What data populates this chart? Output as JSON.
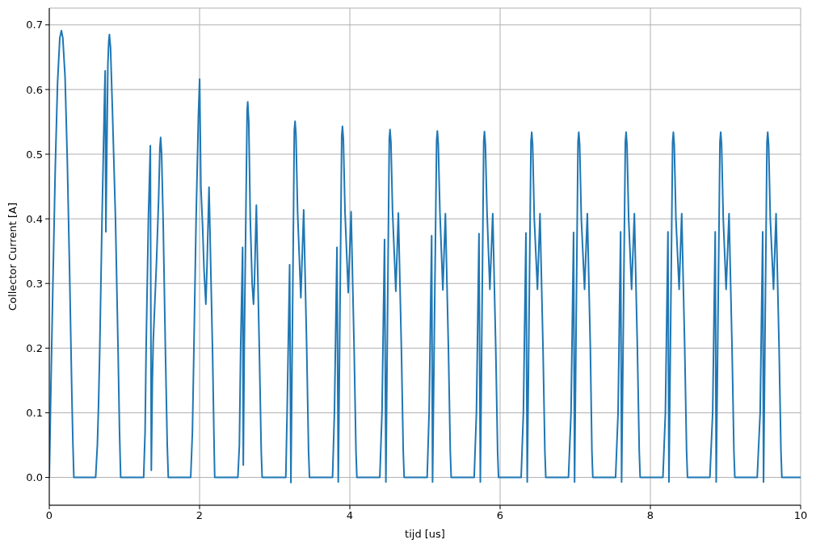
{
  "chart_data": {
    "type": "line",
    "xlabel": "tijd [us]",
    "ylabel": "Collector Current [A]",
    "color": "#1f77b4",
    "xlim": [
      0,
      10
    ],
    "ylim": [
      -0.043,
      0.726
    ],
    "xticks": [
      0,
      2,
      4,
      6,
      8,
      10
    ],
    "yticks": [
      {
        "value": 0,
        "label": "0.0"
      },
      0.1,
      0.2,
      0.3,
      0.4,
      0.5,
      0.6,
      0.7
    ],
    "grid": true,
    "x": [
      0,
      0.02,
      0.05,
      0.08,
      0.11,
      0.14,
      0.161,
      0.18,
      0.21,
      0.24,
      0.27,
      0.3,
      0.315,
      0.327,
      0.617,
      0.64,
      0.655,
      0.672,
      0.702,
      0.737,
      0.744,
      0.753,
      0.78,
      0.792,
      0.8,
      0.815,
      0.84,
      0.881,
      0.915,
      0.935,
      0.95,
      1.256,
      1.275,
      1.289,
      1.319,
      1.345,
      1.358,
      1.372,
      1.384,
      1.426,
      1.455,
      1.472,
      1.482,
      1.495,
      1.515,
      1.545,
      1.57,
      1.584,
      1.882,
      1.905,
      1.925,
      1.954,
      1.985,
      2.001,
      2.018,
      2.04,
      2.06,
      2.084,
      2.1,
      2.126,
      2.172,
      2.195,
      2.202,
      2.51,
      2.53,
      2.547,
      2.573,
      2.582,
      2.595,
      2.633,
      2.641,
      2.655,
      2.675,
      2.7,
      2.718,
      2.73,
      2.756,
      2.795,
      2.821,
      2.833,
      3.148,
      3.165,
      3.199,
      3.216,
      3.261,
      3.271,
      3.283,
      3.305,
      3.348,
      3.386,
      3.426,
      3.451,
      3.463,
      3.77,
      3.795,
      3.829,
      3.846,
      3.892,
      3.902,
      3.914,
      3.936,
      3.979,
      4.017,
      4.057,
      4.082,
      4.094,
      4.399,
      4.428,
      4.462,
      4.48,
      4.525,
      4.535,
      4.547,
      4.569,
      4.612,
      4.646,
      4.686,
      4.711,
      4.723,
      5.029,
      5.055,
      5.089,
      5.101,
      5.155,
      5.165,
      5.177,
      5.199,
      5.238,
      5.272,
      5.312,
      5.337,
      5.349,
      5.655,
      5.685,
      5.719,
      5.737,
      5.782,
      5.792,
      5.804,
      5.826,
      5.864,
      5.902,
      5.942,
      5.967,
      5.979,
      6.28,
      6.31,
      6.344,
      6.361,
      6.411,
      6.421,
      6.433,
      6.455,
      6.497,
      6.531,
      6.571,
      6.596,
      6.608,
      6.91,
      6.944,
      6.978,
      6.991,
      7.037,
      7.047,
      7.059,
      7.081,
      7.124,
      7.161,
      7.201,
      7.222,
      7.234,
      7.537,
      7.57,
      7.604,
      7.617,
      7.667,
      7.677,
      7.689,
      7.711,
      7.75,
      7.787,
      7.827,
      7.852,
      7.864,
      8.167,
      8.2,
      8.234,
      8.247,
      8.296,
      8.306,
      8.318,
      8.34,
      8.383,
      8.417,
      8.457,
      8.482,
      8.494,
      8.792,
      8.829,
      8.863,
      8.876,
      8.926,
      8.936,
      8.948,
      8.97,
      9.008,
      9.047,
      9.087,
      9.112,
      9.124,
      9.422,
      9.461,
      9.495,
      9.506,
      9.552,
      9.562,
      9.574,
      9.596,
      9.639,
      9.673,
      9.713,
      9.738,
      9.75,
      10
    ],
    "values": [
      0,
      0.13,
      0.31,
      0.48,
      0.61,
      0.68,
      0.691,
      0.68,
      0.62,
      0.49,
      0.32,
      0.13,
      0.05,
      0,
      0,
      0.05,
      0.11,
      0.2,
      0.4,
      0.6,
      0.629,
      0.38,
      0.64,
      0.675,
      0.685,
      0.665,
      0.57,
      0.4,
      0.2,
      0.07,
      0,
      0,
      0.07,
      0.2,
      0.4,
      0.513,
      0.011,
      0.15,
      0.212,
      0.33,
      0.43,
      0.51,
      0.526,
      0.5,
      0.4,
      0.2,
      0.05,
      0,
      0,
      0.07,
      0.2,
      0.4,
      0.56,
      0.616,
      0.449,
      0.39,
      0.32,
      0.268,
      0.33,
      0.449,
      0.2,
      0.04,
      0,
      0,
      0.05,
      0.2,
      0.356,
      0.019,
      0.2,
      0.566,
      0.581,
      0.55,
      0.4,
      0.3,
      0.268,
      0.3,
      0.421,
      0.2,
      0.04,
      0,
      0,
      0.1,
      0.329,
      -0.008,
      0.536,
      0.551,
      0.531,
      0.41,
      0.278,
      0.414,
      0.2,
      0.04,
      0,
      0,
      0.1,
      0.356,
      -0.007,
      0.528,
      0.543,
      0.523,
      0.41,
      0.286,
      0.411,
      0.2,
      0.04,
      0,
      0,
      0.1,
      0.368,
      -0.007,
      0.523,
      0.538,
      0.518,
      0.41,
      0.288,
      0.409,
      0.2,
      0.04,
      0,
      0,
      0.1,
      0.374,
      -0.007,
      0.521,
      0.536,
      0.516,
      0.41,
      0.29,
      0.408,
      0.2,
      0.04,
      0,
      0,
      0.1,
      0.377,
      -0.007,
      0.52,
      0.535,
      0.515,
      0.41,
      0.291,
      0.408,
      0.2,
      0.04,
      0,
      0,
      0.1,
      0.378,
      -0.007,
      0.519,
      0.534,
      0.514,
      0.4,
      0.291,
      0.408,
      0.2,
      0.04,
      0,
      0,
      0.1,
      0.379,
      -0.007,
      0.519,
      0.534,
      0.514,
      0.4,
      0.291,
      0.408,
      0.2,
      0.04,
      0,
      0,
      0.1,
      0.38,
      -0.007,
      0.519,
      0.534,
      0.514,
      0.4,
      0.291,
      0.408,
      0.2,
      0.04,
      0,
      0,
      0.1,
      0.38,
      -0.007,
      0.519,
      0.534,
      0.514,
      0.4,
      0.291,
      0.408,
      0.2,
      0.04,
      0,
      0,
      0.1,
      0.38,
      -0.007,
      0.519,
      0.534,
      0.514,
      0.4,
      0.291,
      0.408,
      0.2,
      0.04,
      0,
      0,
      0.1,
      0.38,
      -0.007,
      0.519,
      0.534,
      0.514,
      0.4,
      0.291,
      0.408,
      0.2,
      0.04,
      0,
      0
    ]
  }
}
